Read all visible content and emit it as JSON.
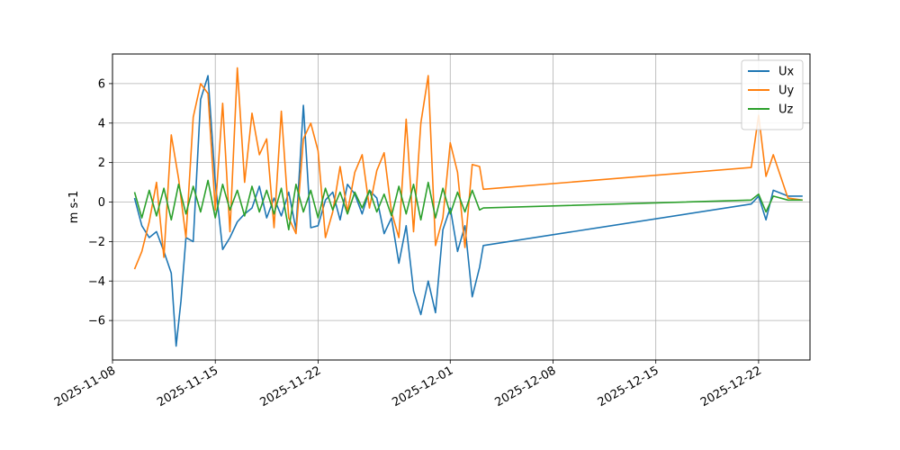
{
  "chart_data": {
    "type": "line",
    "title": "",
    "xlabel": "",
    "ylabel": "m s-1",
    "xlim": [
      "2025-11-08T00:00",
      "2025-12-25T12:00"
    ],
    "ylim": [
      -8,
      7.5
    ],
    "grid": true,
    "legend_position": "top-right",
    "x_tick_labels": [
      "2025-11-08",
      "2025-11-15",
      "2025-11-22",
      "2025-12-01",
      "2025-12-08",
      "2025-12-15",
      "2025-12-22"
    ],
    "x_ticks": [
      "2025-11-08",
      "2025-11-15",
      "2025-11-22",
      "2025-12-01",
      "2025-12-08",
      "2025-12-15",
      "2025-12-22"
    ],
    "y_ticks": [
      -6,
      -4,
      -2,
      0,
      2,
      4,
      6
    ],
    "y_tick_labels": [
      "−6",
      "−4",
      "−2",
      "0",
      "2",
      "4",
      "6"
    ],
    "series": [
      {
        "name": "Ux",
        "color": "#1f77b4",
        "x": [
          "2025-11-09T12:00",
          "2025-11-10T00:00",
          "2025-11-10T12:00",
          "2025-11-11T00:00",
          "2025-11-11T12:00",
          "2025-11-12T00:00",
          "2025-11-12T08:00",
          "2025-11-12T16:00",
          "2025-11-13T00:00",
          "2025-11-13T12:00",
          "2025-11-14T00:00",
          "2025-11-14T12:00",
          "2025-11-15T00:00",
          "2025-11-15T12:00",
          "2025-11-16T00:00",
          "2025-11-16T12:00",
          "2025-11-17T00:00",
          "2025-11-17T12:00",
          "2025-11-18T00:00",
          "2025-11-18T12:00",
          "2025-11-19T00:00",
          "2025-11-19T12:00",
          "2025-11-20T00:00",
          "2025-11-20T12:00",
          "2025-11-21T00:00",
          "2025-11-21T12:00",
          "2025-11-22T00:00",
          "2025-11-22T12:00",
          "2025-11-23T00:00",
          "2025-11-23T12:00",
          "2025-11-24T00:00",
          "2025-11-24T12:00",
          "2025-11-25T00:00",
          "2025-11-25T12:00",
          "2025-11-26T00:00",
          "2025-11-26T12:00",
          "2025-11-27T00:00",
          "2025-11-27T12:00",
          "2025-11-28T00:00",
          "2025-11-28T12:00",
          "2025-11-29T00:00",
          "2025-11-29T12:00",
          "2025-11-30T00:00",
          "2025-11-30T12:00",
          "2025-12-01T00:00",
          "2025-12-01T12:00",
          "2025-12-02T00:00",
          "2025-12-02T12:00",
          "2025-12-03T00:00",
          "2025-12-03T06:00",
          "2025-12-21T12:00",
          "2025-12-22T00:00",
          "2025-12-22T12:00",
          "2025-12-23T00:00",
          "2025-12-24T00:00",
          "2025-12-25T00:00"
        ],
        "y": [
          0.2,
          -1.2,
          -1.8,
          -1.5,
          -2.5,
          -3.6,
          -7.3,
          -5.0,
          -1.8,
          -2.0,
          5.2,
          6.4,
          1.0,
          -2.4,
          -1.8,
          -1.0,
          -0.6,
          -0.3,
          0.8,
          -0.8,
          0.2,
          -0.7,
          0.5,
          -1.4,
          4.9,
          -1.3,
          -1.2,
          0.1,
          0.5,
          -0.9,
          0.9,
          0.4,
          -0.6,
          0.6,
          0.2,
          -1.6,
          -0.8,
          -3.1,
          -1.2,
          -4.5,
          -5.7,
          -4.0,
          -5.6,
          -1.4,
          -0.3,
          -2.5,
          -1.2,
          -4.8,
          -3.3,
          -2.2,
          -0.1,
          0.3,
          -0.9,
          0.6,
          0.3,
          0.3
        ]
      },
      {
        "name": "Uy",
        "color": "#ff7f0e",
        "x": [
          "2025-11-09T12:00",
          "2025-11-10T00:00",
          "2025-11-10T12:00",
          "2025-11-11T00:00",
          "2025-11-11T12:00",
          "2025-11-12T00:00",
          "2025-11-12T12:00",
          "2025-11-13T00:00",
          "2025-11-13T12:00",
          "2025-11-14T00:00",
          "2025-11-14T12:00",
          "2025-11-15T00:00",
          "2025-11-15T12:00",
          "2025-11-16T00:00",
          "2025-11-16T12:00",
          "2025-11-17T00:00",
          "2025-11-17T12:00",
          "2025-11-18T00:00",
          "2025-11-18T12:00",
          "2025-11-19T00:00",
          "2025-11-19T12:00",
          "2025-11-20T00:00",
          "2025-11-20T12:00",
          "2025-11-21T00:00",
          "2025-11-21T12:00",
          "2025-11-22T00:00",
          "2025-11-22T12:00",
          "2025-11-23T00:00",
          "2025-11-23T12:00",
          "2025-11-24T00:00",
          "2025-11-24T12:00",
          "2025-11-25T00:00",
          "2025-11-25T12:00",
          "2025-11-26T00:00",
          "2025-11-26T12:00",
          "2025-11-27T00:00",
          "2025-11-27T12:00",
          "2025-11-28T00:00",
          "2025-11-28T12:00",
          "2025-11-29T00:00",
          "2025-11-29T12:00",
          "2025-11-30T00:00",
          "2025-11-30T12:00",
          "2025-12-01T00:00",
          "2025-12-01T12:00",
          "2025-12-02T00:00",
          "2025-12-02T12:00",
          "2025-12-03T00:00",
          "2025-12-03T06:00",
          "2025-12-21T12:00",
          "2025-12-22T00:00",
          "2025-12-22T12:00",
          "2025-12-23T00:00",
          "2025-12-24T00:00",
          "2025-12-25T00:00"
        ],
        "y": [
          -3.4,
          -2.5,
          -1.0,
          1.0,
          -2.8,
          3.4,
          1.2,
          -1.8,
          4.3,
          6.0,
          5.5,
          -0.4,
          5.0,
          -1.5,
          6.8,
          1.0,
          4.5,
          2.4,
          3.2,
          -1.3,
          4.6,
          -0.8,
          -1.6,
          3.2,
          4.0,
          2.6,
          -1.8,
          -0.5,
          1.8,
          -0.5,
          1.5,
          2.4,
          -0.3,
          1.6,
          2.5,
          -0.5,
          -1.8,
          4.2,
          -1.5,
          4.0,
          6.4,
          -2.2,
          -0.8,
          3.0,
          1.5,
          -2.3,
          1.9,
          1.8,
          0.65,
          1.75,
          4.4,
          1.3,
          2.4,
          0.2,
          0.1
        ]
      },
      {
        "name": "Uz",
        "color": "#2ca02c",
        "x": [
          "2025-11-09T12:00",
          "2025-11-10T00:00",
          "2025-11-10T12:00",
          "2025-11-11T00:00",
          "2025-11-11T12:00",
          "2025-11-12T00:00",
          "2025-11-12T12:00",
          "2025-11-13T00:00",
          "2025-11-13T12:00",
          "2025-11-14T00:00",
          "2025-11-14T12:00",
          "2025-11-15T00:00",
          "2025-11-15T12:00",
          "2025-11-16T00:00",
          "2025-11-16T12:00",
          "2025-11-17T00:00",
          "2025-11-17T12:00",
          "2025-11-18T00:00",
          "2025-11-18T12:00",
          "2025-11-19T00:00",
          "2025-11-19T12:00",
          "2025-11-20T00:00",
          "2025-11-20T12:00",
          "2025-11-21T00:00",
          "2025-11-21T12:00",
          "2025-11-22T00:00",
          "2025-11-22T12:00",
          "2025-11-23T00:00",
          "2025-11-23T12:00",
          "2025-11-24T00:00",
          "2025-11-24T12:00",
          "2025-11-25T00:00",
          "2025-11-25T12:00",
          "2025-11-26T00:00",
          "2025-11-26T12:00",
          "2025-11-27T00:00",
          "2025-11-27T12:00",
          "2025-11-28T00:00",
          "2025-11-28T12:00",
          "2025-11-29T00:00",
          "2025-11-29T12:00",
          "2025-11-30T00:00",
          "2025-11-30T12:00",
          "2025-12-01T00:00",
          "2025-12-01T12:00",
          "2025-12-02T00:00",
          "2025-12-02T12:00",
          "2025-12-03T00:00",
          "2025-12-03T06:00",
          "2025-12-21T12:00",
          "2025-12-22T00:00",
          "2025-12-22T12:00",
          "2025-12-23T00:00",
          "2025-12-24T00:00",
          "2025-12-25T00:00"
        ],
        "y": [
          0.5,
          -0.8,
          0.6,
          -0.7,
          0.7,
          -0.9,
          0.9,
          -0.6,
          0.8,
          -0.5,
          1.1,
          -0.8,
          0.9,
          -0.4,
          0.6,
          -0.7,
          0.8,
          -0.5,
          0.6,
          -0.6,
          0.7,
          -1.4,
          0.9,
          -0.5,
          0.6,
          -0.8,
          0.7,
          -0.4,
          0.5,
          -0.6,
          0.5,
          -0.3,
          0.6,
          -0.5,
          0.4,
          -0.7,
          0.8,
          -0.6,
          0.9,
          -0.9,
          1.0,
          -0.8,
          0.7,
          -0.6,
          0.5,
          -0.5,
          0.6,
          -0.4,
          -0.3,
          0.1,
          0.4,
          -0.5,
          0.3,
          0.1,
          0.1
        ]
      }
    ]
  }
}
